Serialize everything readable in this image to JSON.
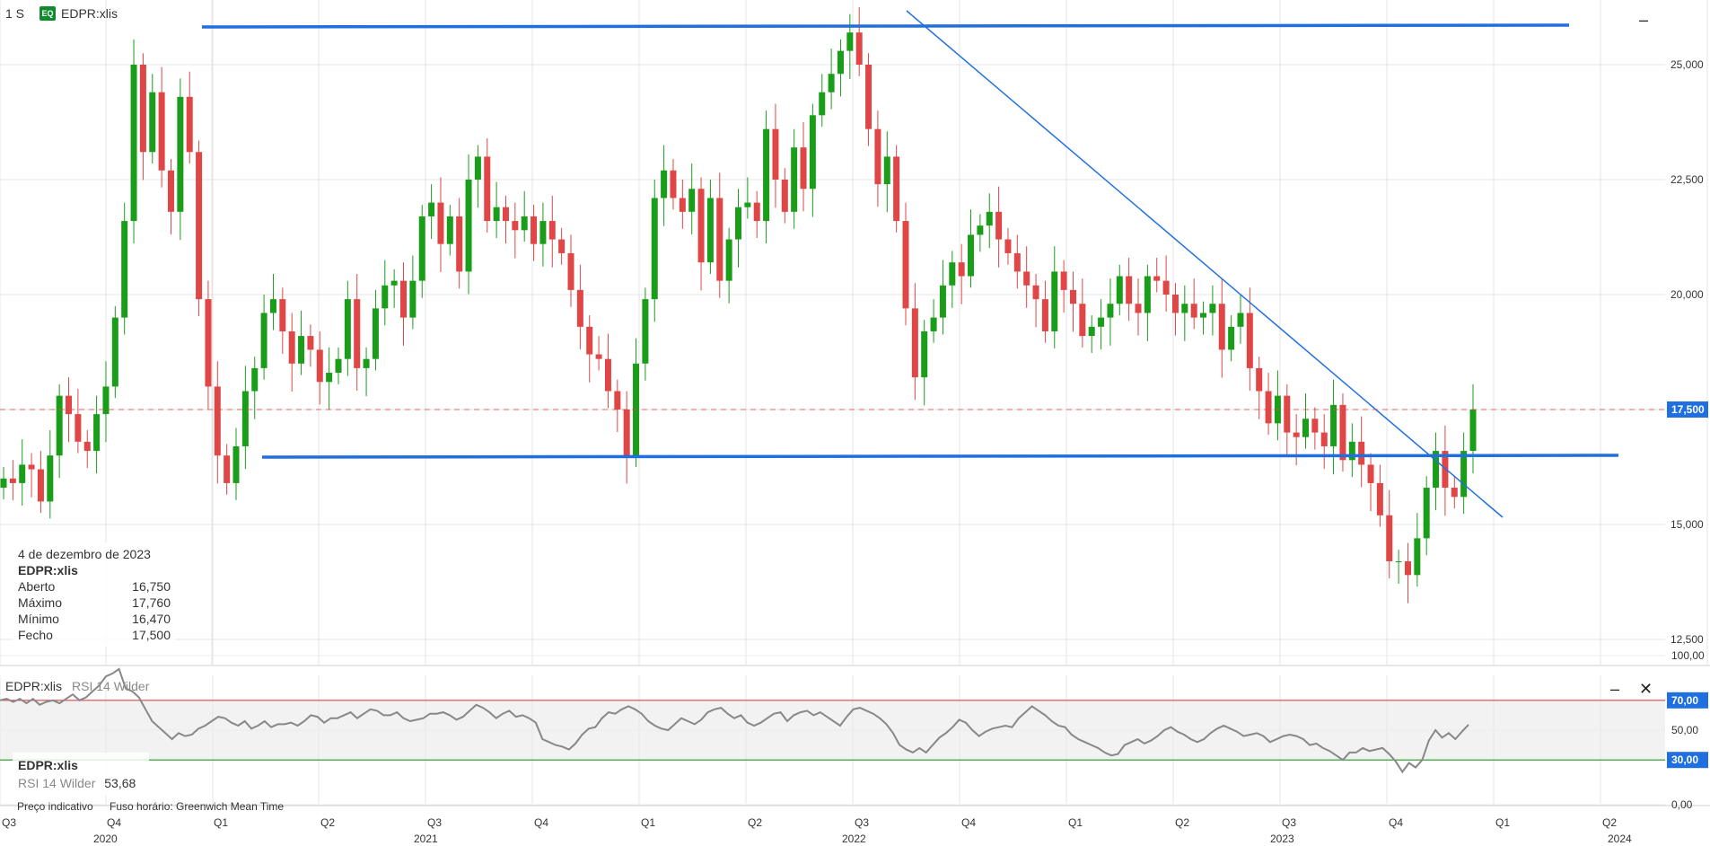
{
  "header": {
    "interval": "1 S",
    "badge": "EQ",
    "symbol": "EDPR:xlis"
  },
  "info_box": {
    "date": "4 de dezembro de 2023",
    "symbol": "EDPR:xlis",
    "rows": [
      {
        "label": "Aberto",
        "value": "16,750"
      },
      {
        "label": "Máximo",
        "value": "17,760"
      },
      {
        "label": "Mínimo",
        "value": "16,470"
      },
      {
        "label": "Fecho",
        "value": "17,500"
      }
    ]
  },
  "rsi_panel": {
    "symbol": "EDPR:xlis",
    "indicator": "RSI 14 Wilder",
    "value": "53,68"
  },
  "footer": {
    "note1": "Preço indicativo",
    "note2": "Fuso horário: Greenwich Mean Time"
  },
  "colors": {
    "up": "#1a9e1a",
    "down": "#e04646",
    "trendline": "#1f6fe0",
    "price_tag": "#1f6fe0",
    "rsi_line": "#888888"
  },
  "chart_data": [
    {
      "type": "candlestick",
      "interval": "weekly",
      "symbol": "EDPR:xlis",
      "ylim": [
        11.5,
        26.3
      ],
      "y_ticks": [
        "25,000",
        "22,500",
        "20,000",
        "17,500",
        "15,000",
        "12,500"
      ],
      "y_tick_values": [
        25,
        22.5,
        20,
        17.5,
        15,
        12.5
      ],
      "last_price": 17.5,
      "last_price_label": "17,500",
      "x_quarter_labels": [
        "Q3",
        "Q4",
        "Q1",
        "Q2",
        "Q3",
        "Q4",
        "Q1",
        "Q2",
        "Q3",
        "Q4",
        "Q1",
        "Q2",
        "Q3",
        "Q4",
        "Q1",
        "Q2"
      ],
      "x_year_labels": [
        "2020",
        "2021",
        "2022",
        "2023",
        "2024"
      ],
      "closes": [
        16.0,
        15.9,
        16.3,
        16.2,
        15.5,
        16.5,
        17.8,
        17.4,
        16.8,
        16.6,
        17.4,
        18.0,
        19.5,
        21.6,
        25.0,
        23.1,
        24.4,
        22.7,
        21.8,
        24.3,
        23.1,
        19.9,
        18.0,
        16.5,
        15.9,
        16.7,
        17.9,
        18.4,
        19.6,
        19.9,
        19.2,
        18.5,
        19.1,
        18.8,
        18.1,
        18.3,
        18.6,
        19.9,
        18.4,
        18.6,
        19.7,
        20.2,
        20.3,
        19.5,
        20.3,
        21.7,
        22.0,
        21.1,
        21.7,
        20.5,
        22.5,
        23.0,
        21.6,
        21.9,
        21.6,
        21.4,
        21.7,
        21.1,
        21.6,
        21.2,
        20.9,
        20.1,
        19.3,
        18.7,
        18.6,
        17.9,
        17.5,
        16.5,
        18.5,
        19.9,
        22.1,
        22.7,
        22.1,
        21.8,
        22.3,
        20.7,
        22.1,
        20.3,
        21.2,
        21.9,
        22.0,
        21.6,
        23.6,
        22.5,
        21.8,
        23.2,
        22.3,
        23.9,
        24.4,
        24.8,
        25.3,
        25.7,
        25.0,
        23.6,
        22.4,
        23.0,
        21.6,
        19.7,
        18.2,
        19.2,
        19.5,
        20.2,
        20.7,
        20.4,
        21.3,
        21.5,
        21.8,
        21.2,
        20.9,
        20.5,
        20.2,
        19.9,
        19.2,
        20.5,
        20.1,
        19.8,
        19.1,
        19.3,
        19.5,
        19.8,
        20.4,
        19.8,
        19.6,
        20.4,
        20.3,
        20.0,
        19.6,
        19.8,
        19.5,
        19.6,
        19.8,
        18.8,
        19.3,
        19.6,
        18.4,
        17.9,
        17.2,
        17.8,
        17.0,
        16.9,
        17.3,
        17.0,
        16.7,
        17.6,
        16.4,
        16.8,
        16.3,
        15.9,
        15.2,
        14.2,
        14.2,
        13.9,
        14.7,
        15.8,
        16.6,
        15.8,
        15.6,
        16.6,
        17.5
      ]
    },
    {
      "type": "line",
      "name": "RSI 14 Wilder",
      "ylim": [
        0,
        100
      ],
      "y_ticks": [
        "100,00",
        "50,00",
        "0,00"
      ],
      "y_tick_values": [
        100,
        50,
        0
      ],
      "levels": [
        {
          "value": 70,
          "label": "70,00"
        },
        {
          "value": 30,
          "label": "30,00"
        }
      ],
      "last_value": 53.68,
      "x_quarter_labels": [
        "Q3",
        "Q4",
        "Q1",
        "Q2",
        "Q3",
        "Q4",
        "Q1",
        "Q2",
        "Q3",
        "Q4",
        "Q1",
        "Q2",
        "Q3",
        "Q4",
        "Q1",
        "Q2"
      ],
      "x_year_labels": [
        "2020",
        "2021",
        "2022",
        "2023",
        "2024"
      ],
      "values": [
        70,
        71,
        69,
        71,
        68,
        71,
        67,
        69,
        70,
        68,
        71,
        74,
        70,
        72,
        76,
        80,
        86,
        88,
        91,
        78,
        76,
        72,
        64,
        56,
        52,
        48,
        44,
        48,
        46,
        47,
        51,
        53,
        56,
        59,
        58,
        55,
        53,
        56,
        51,
        53,
        56,
        52,
        54,
        54,
        55,
        53,
        56,
        60,
        59,
        55,
        58,
        58,
        60,
        62,
        58,
        61,
        64,
        63,
        60,
        60,
        62,
        58,
        56,
        57,
        58,
        61,
        61,
        62,
        60,
        57,
        59,
        63,
        67,
        65,
        62,
        58,
        61,
        63,
        59,
        60,
        58,
        55,
        44,
        42,
        40,
        39,
        37,
        41,
        47,
        51,
        52,
        58,
        62,
        61,
        64,
        66,
        64,
        61,
        56,
        53,
        51,
        50,
        54,
        58,
        56,
        54,
        57,
        62,
        64,
        65,
        61,
        58,
        60,
        55,
        53,
        55,
        58,
        61,
        62,
        56,
        60,
        62,
        63,
        60,
        62,
        59,
        56,
        53,
        59,
        64,
        65,
        63,
        61,
        58,
        54,
        48,
        40,
        37,
        35,
        38,
        35,
        40,
        45,
        48,
        52,
        57,
        55,
        50,
        46,
        49,
        51,
        52,
        53,
        52,
        58,
        62,
        66,
        63,
        60,
        56,
        53,
        52,
        47,
        44,
        42,
        40,
        38,
        35,
        33,
        34,
        40,
        42,
        44,
        41,
        43,
        46,
        50,
        52,
        49,
        47,
        44,
        42,
        44,
        48,
        51,
        53,
        51,
        49,
        46,
        47,
        48,
        46,
        42,
        44,
        46,
        47,
        46,
        44,
        40,
        41,
        38,
        36,
        33,
        30,
        35,
        35,
        38,
        36,
        37,
        38,
        34,
        29,
        22,
        28,
        25,
        30,
        43,
        50,
        45,
        48,
        44,
        49,
        53.68
      ]
    }
  ]
}
